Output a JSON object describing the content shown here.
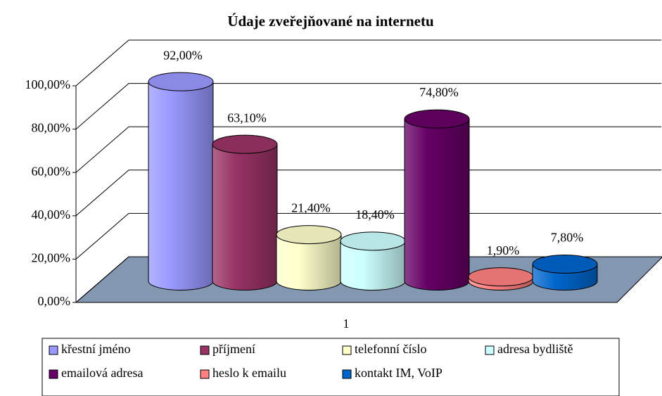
{
  "chart_data": {
    "type": "bar",
    "title": "Údaje zveřejňované na internetu",
    "categories": [
      "1"
    ],
    "series": [
      {
        "name": "křestní jméno",
        "color": "#9999ff",
        "values": [
          92
        ],
        "value_labels": [
          "92,00%"
        ]
      },
      {
        "name": "příjmení",
        "color": "#993366",
        "values": [
          63.1
        ],
        "value_labels": [
          "63,10%"
        ]
      },
      {
        "name": "telefonní číslo",
        "color": "#ffffcc",
        "values": [
          21.4
        ],
        "value_labels": [
          "21,40%"
        ]
      },
      {
        "name": "adresa bydliště",
        "color": "#ccffff",
        "values": [
          18.4
        ],
        "value_labels": [
          "18,40%"
        ]
      },
      {
        "name": "emailová adresa",
        "color": "#660066",
        "values": [
          74.8
        ],
        "value_labels": [
          "74,80%"
        ]
      },
      {
        "name": "heslo k emailu",
        "color": "#ff8080",
        "values": [
          1.9
        ],
        "value_labels": [
          "1,90%"
        ]
      },
      {
        "name": "kontakt IM, VoIP",
        "color": "#0066cc",
        "values": [
          7.8
        ],
        "value_labels": [
          "7,80%"
        ]
      }
    ],
    "ylim": [
      0,
      100
    ],
    "yticks": [
      {
        "value": 0,
        "label": "0,00%"
      },
      {
        "value": 20,
        "label": "20,00%"
      },
      {
        "value": 40,
        "label": "40,00%"
      },
      {
        "value": 60,
        "label": "60,00%"
      },
      {
        "value": 80,
        "label": "80,00%"
      },
      {
        "value": 100,
        "label": "100,00%"
      }
    ],
    "grid": true,
    "legend": "bottom"
  }
}
